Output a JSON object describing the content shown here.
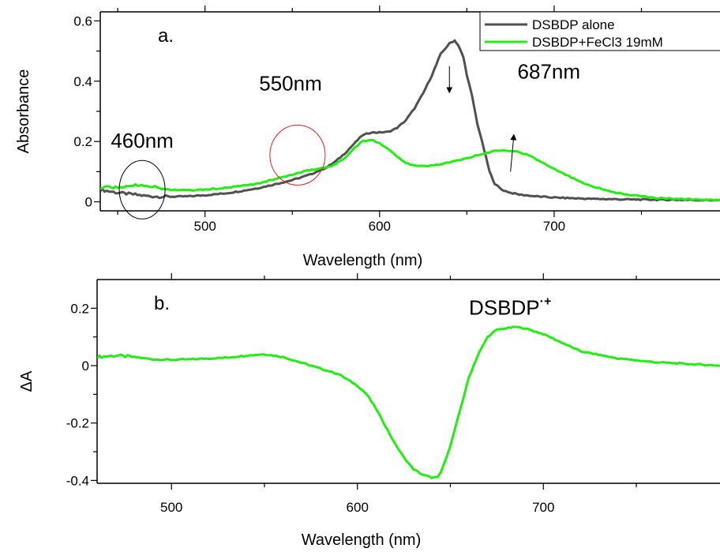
{
  "chart_data": [
    {
      "type": "line",
      "panel_label": "a.",
      "title": "",
      "xlabel": "Wavelength (nm)",
      "ylabel": "Absorbance",
      "xlim": [
        440,
        795
      ],
      "ylim": [
        -0.03,
        0.63
      ],
      "xticks": [
        500,
        600,
        700
      ],
      "yticks": [
        0,
        0.2,
        0.4,
        0.6
      ],
      "ytick_labels": [
        "0",
        "0.2",
        "0.4",
        "0.6"
      ],
      "grid": false,
      "legend_position": "top-right",
      "series": [
        {
          "name": "DSBDP alone",
          "color": "#505050",
          "x": [
            440,
            445,
            450,
            455,
            460,
            465,
            470,
            475,
            480,
            490,
            500,
            510,
            520,
            530,
            540,
            550,
            560,
            570,
            575,
            580,
            585,
            590,
            595,
            600,
            605,
            610,
            615,
            620,
            625,
            630,
            635,
            640,
            643,
            645,
            648,
            650,
            653,
            656,
            660,
            663,
            666,
            670,
            675,
            680,
            690,
            700,
            710,
            720,
            740,
            760,
            780,
            795
          ],
          "y": [
            0.04,
            0.035,
            0.03,
            0.027,
            0.024,
            0.02,
            0.018,
            0.017,
            0.017,
            0.018,
            0.022,
            0.027,
            0.035,
            0.045,
            0.058,
            0.072,
            0.09,
            0.115,
            0.135,
            0.16,
            0.19,
            0.22,
            0.23,
            0.23,
            0.232,
            0.245,
            0.27,
            0.31,
            0.36,
            0.42,
            0.49,
            0.525,
            0.535,
            0.52,
            0.48,
            0.42,
            0.35,
            0.26,
            0.17,
            0.1,
            0.06,
            0.04,
            0.03,
            0.024,
            0.018,
            0.014,
            0.012,
            0.01,
            0.008,
            0.007,
            0.006,
            0.005
          ]
        },
        {
          "name": "DSBDP+FeCl3 19mM",
          "color": "#22ee11",
          "x": [
            440,
            445,
            450,
            455,
            460,
            465,
            470,
            475,
            480,
            490,
            500,
            510,
            520,
            530,
            540,
            550,
            560,
            570,
            575,
            580,
            585,
            590,
            595,
            600,
            605,
            610,
            615,
            620,
            625,
            630,
            640,
            650,
            660,
            665,
            670,
            675,
            680,
            685,
            690,
            700,
            710,
            720,
            730,
            740,
            750,
            760,
            780,
            795
          ],
          "y": [
            0.045,
            0.05,
            0.045,
            0.052,
            0.055,
            0.056,
            0.05,
            0.044,
            0.04,
            0.038,
            0.04,
            0.045,
            0.052,
            0.06,
            0.075,
            0.09,
            0.105,
            0.115,
            0.125,
            0.145,
            0.175,
            0.2,
            0.205,
            0.195,
            0.175,
            0.15,
            0.13,
            0.12,
            0.118,
            0.12,
            0.13,
            0.145,
            0.16,
            0.168,
            0.172,
            0.17,
            0.165,
            0.155,
            0.14,
            0.11,
            0.08,
            0.055,
            0.038,
            0.025,
            0.018,
            0.012,
            0.008,
            0.005
          ]
        }
      ],
      "annotations": [
        {
          "text": "460nm",
          "x": 464,
          "y": 0.2
        },
        {
          "text": "550nm",
          "x": 549,
          "y": 0.39
        },
        {
          "text": "687nm",
          "x": 697,
          "y": 0.43
        }
      ],
      "circles": [
        {
          "x": 464,
          "y": 0.04,
          "color": "#000000"
        },
        {
          "x": 553,
          "y": 0.155,
          "color": "#dd2222"
        }
      ],
      "arrows": [
        {
          "x": 640,
          "y_from": 0.45,
          "y_to": 0.37,
          "direction": "down"
        },
        {
          "x": 675,
          "y_from": 0.1,
          "y_to": 0.215,
          "direction": "up"
        }
      ]
    },
    {
      "type": "line",
      "panel_label": "b.",
      "title": "",
      "xlabel": "Wavelength (nm)",
      "ylabel": "ΔA",
      "xlim": [
        460,
        795
      ],
      "ylim": [
        -0.41,
        0.3
      ],
      "xticks": [
        500,
        600,
        700
      ],
      "yticks": [
        -0.4,
        -0.2,
        0,
        0.2
      ],
      "ytick_labels": [
        "-0.4",
        "-0.2",
        "0",
        "0.2"
      ],
      "grid": false,
      "series": [
        {
          "name": "",
          "color": "#22ee11",
          "x": [
            460,
            470,
            480,
            490,
            500,
            510,
            520,
            530,
            540,
            550,
            560,
            570,
            580,
            590,
            600,
            605,
            610,
            615,
            620,
            625,
            630,
            635,
            640,
            643,
            645,
            650,
            655,
            660,
            665,
            670,
            675,
            680,
            685,
            690,
            700,
            710,
            720,
            740,
            760,
            780,
            795
          ],
          "y": [
            0.03,
            0.035,
            0.03,
            0.022,
            0.02,
            0.022,
            0.025,
            0.028,
            0.035,
            0.04,
            0.03,
            0.01,
            -0.01,
            -0.03,
            -0.07,
            -0.1,
            -0.15,
            -0.21,
            -0.27,
            -0.32,
            -0.36,
            -0.38,
            -0.39,
            -0.39,
            -0.37,
            -0.28,
            -0.16,
            -0.04,
            0.04,
            0.1,
            0.125,
            0.13,
            0.135,
            0.13,
            0.11,
            0.08,
            0.05,
            0.025,
            0.012,
            0.005,
            0.0
          ]
        }
      ],
      "annotations": [
        {
          "text": "DSBDP",
          "superscript": "·+",
          "x": 660,
          "y": 0.2
        }
      ]
    }
  ]
}
